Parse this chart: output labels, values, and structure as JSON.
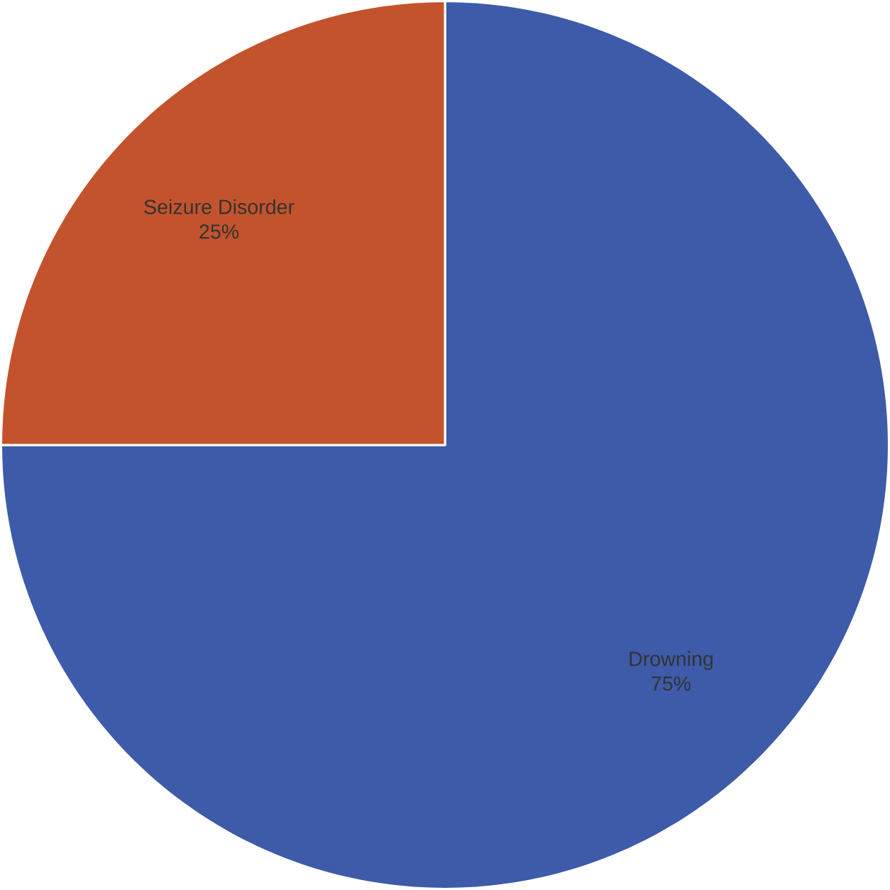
{
  "chart_data": {
    "type": "pie",
    "categories": [
      "Drowning",
      "Seizure Disorder"
    ],
    "values": [
      75,
      25
    ],
    "colors": [
      "#3e5ba9",
      "#c3532c"
    ],
    "value_labels": [
      "75%",
      "25%"
    ]
  }
}
